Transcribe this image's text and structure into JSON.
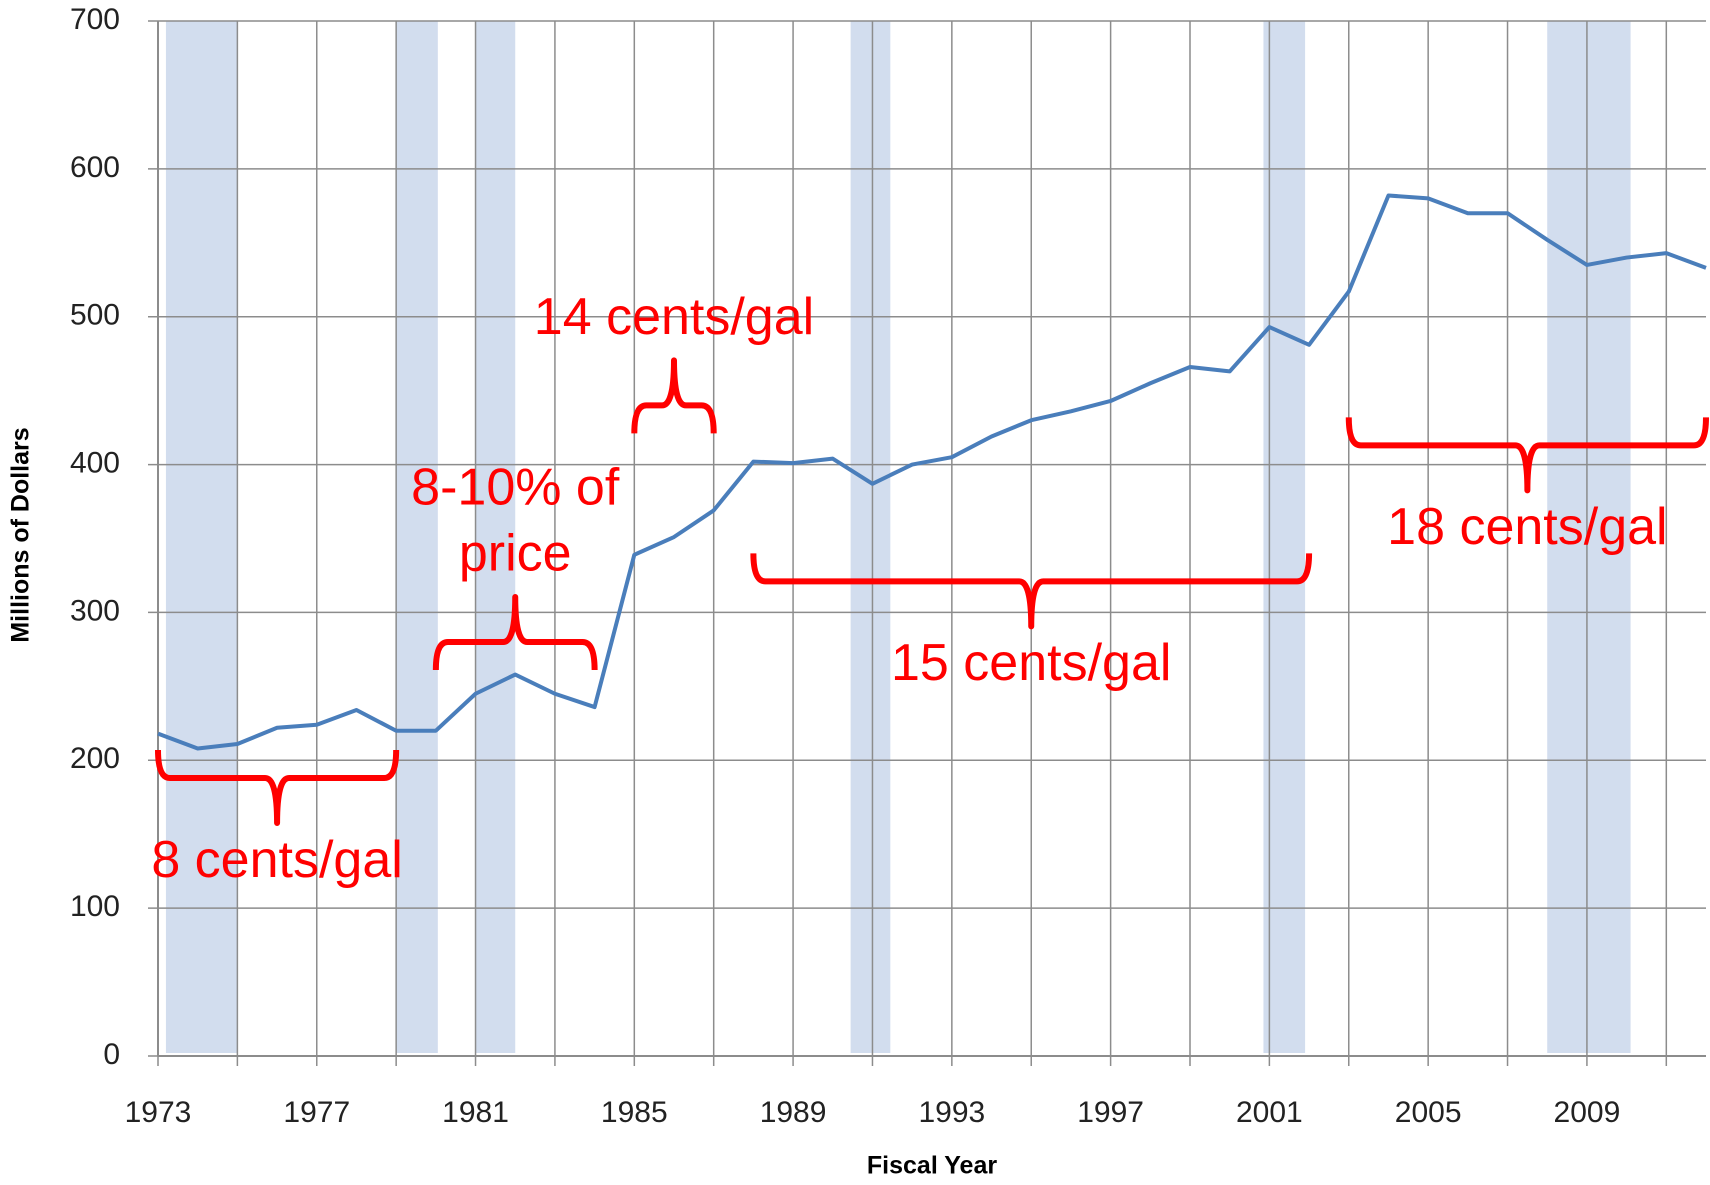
{
  "chart_data": {
    "type": "line",
    "xlabel": "Fiscal Year",
    "ylabel": "Millions of Dollars",
    "x": [
      1973,
      1974,
      1975,
      1976,
      1977,
      1978,
      1979,
      1980,
      1981,
      1982,
      1983,
      1984,
      1985,
      1986,
      1987,
      1988,
      1989,
      1990,
      1991,
      1992,
      1993,
      1994,
      1995,
      1996,
      1997,
      1998,
      1999,
      2000,
      2001,
      2002,
      2003,
      2004,
      2005,
      2006,
      2007,
      2008,
      2009,
      2010,
      2011,
      2012
    ],
    "values": [
      218,
      208,
      211,
      222,
      224,
      234,
      220,
      220,
      245,
      258,
      245,
      236,
      339,
      351,
      369,
      402,
      401,
      404,
      387,
      400,
      405,
      419,
      430,
      436,
      443,
      455,
      466,
      463,
      493,
      481,
      517,
      582,
      580,
      570,
      570,
      552,
      535,
      540,
      543,
      533
    ],
    "color": "#4a7ebb",
    "xlim": [
      1973,
      2012
    ],
    "xticks": [
      1973,
      1977,
      1981,
      1985,
      1989,
      1993,
      1997,
      2001,
      2005,
      2009
    ],
    "xgrid_lines": [
      1973,
      1975,
      1977,
      1979,
      1981,
      1983,
      1985,
      1987,
      1989,
      1991,
      1993,
      1995,
      1997,
      1999,
      2001,
      2003,
      2005,
      2007,
      2009,
      2011
    ],
    "ylim": [
      0,
      700
    ],
    "yticks": [
      0,
      100,
      200,
      300,
      400,
      500,
      600,
      700
    ],
    "grid": true,
    "shaded_periods": [
      [
        1973.2,
        1975
      ],
      [
        1979,
        1980.05
      ],
      [
        1981,
        1982
      ],
      [
        1990.45,
        1991.45
      ],
      [
        2000.85,
        2001.9
      ],
      [
        2008,
        2010.1
      ]
    ],
    "shade_color": "#d2ddee",
    "annotation_color": "#ff0000",
    "annotations": [
      {
        "text": [
          "8 cents/gal"
        ],
        "start": 1973,
        "end": 1979,
        "y": 188,
        "point": "down"
      },
      {
        "text": [
          "8-10% of",
          "price"
        ],
        "start": 1980,
        "end": 1984,
        "y": 280,
        "point": "up"
      },
      {
        "text": [
          "14 cents/gal"
        ],
        "start": 1985,
        "end": 1987,
        "y": 440,
        "point": "up"
      },
      {
        "text": [
          "15 cents/gal"
        ],
        "start": 1988,
        "end": 2002,
        "y": 321,
        "point": "down"
      },
      {
        "text": [
          "18 cents/gal"
        ],
        "start": 2003,
        "end": 2012,
        "y": 413,
        "point": "down"
      }
    ]
  }
}
